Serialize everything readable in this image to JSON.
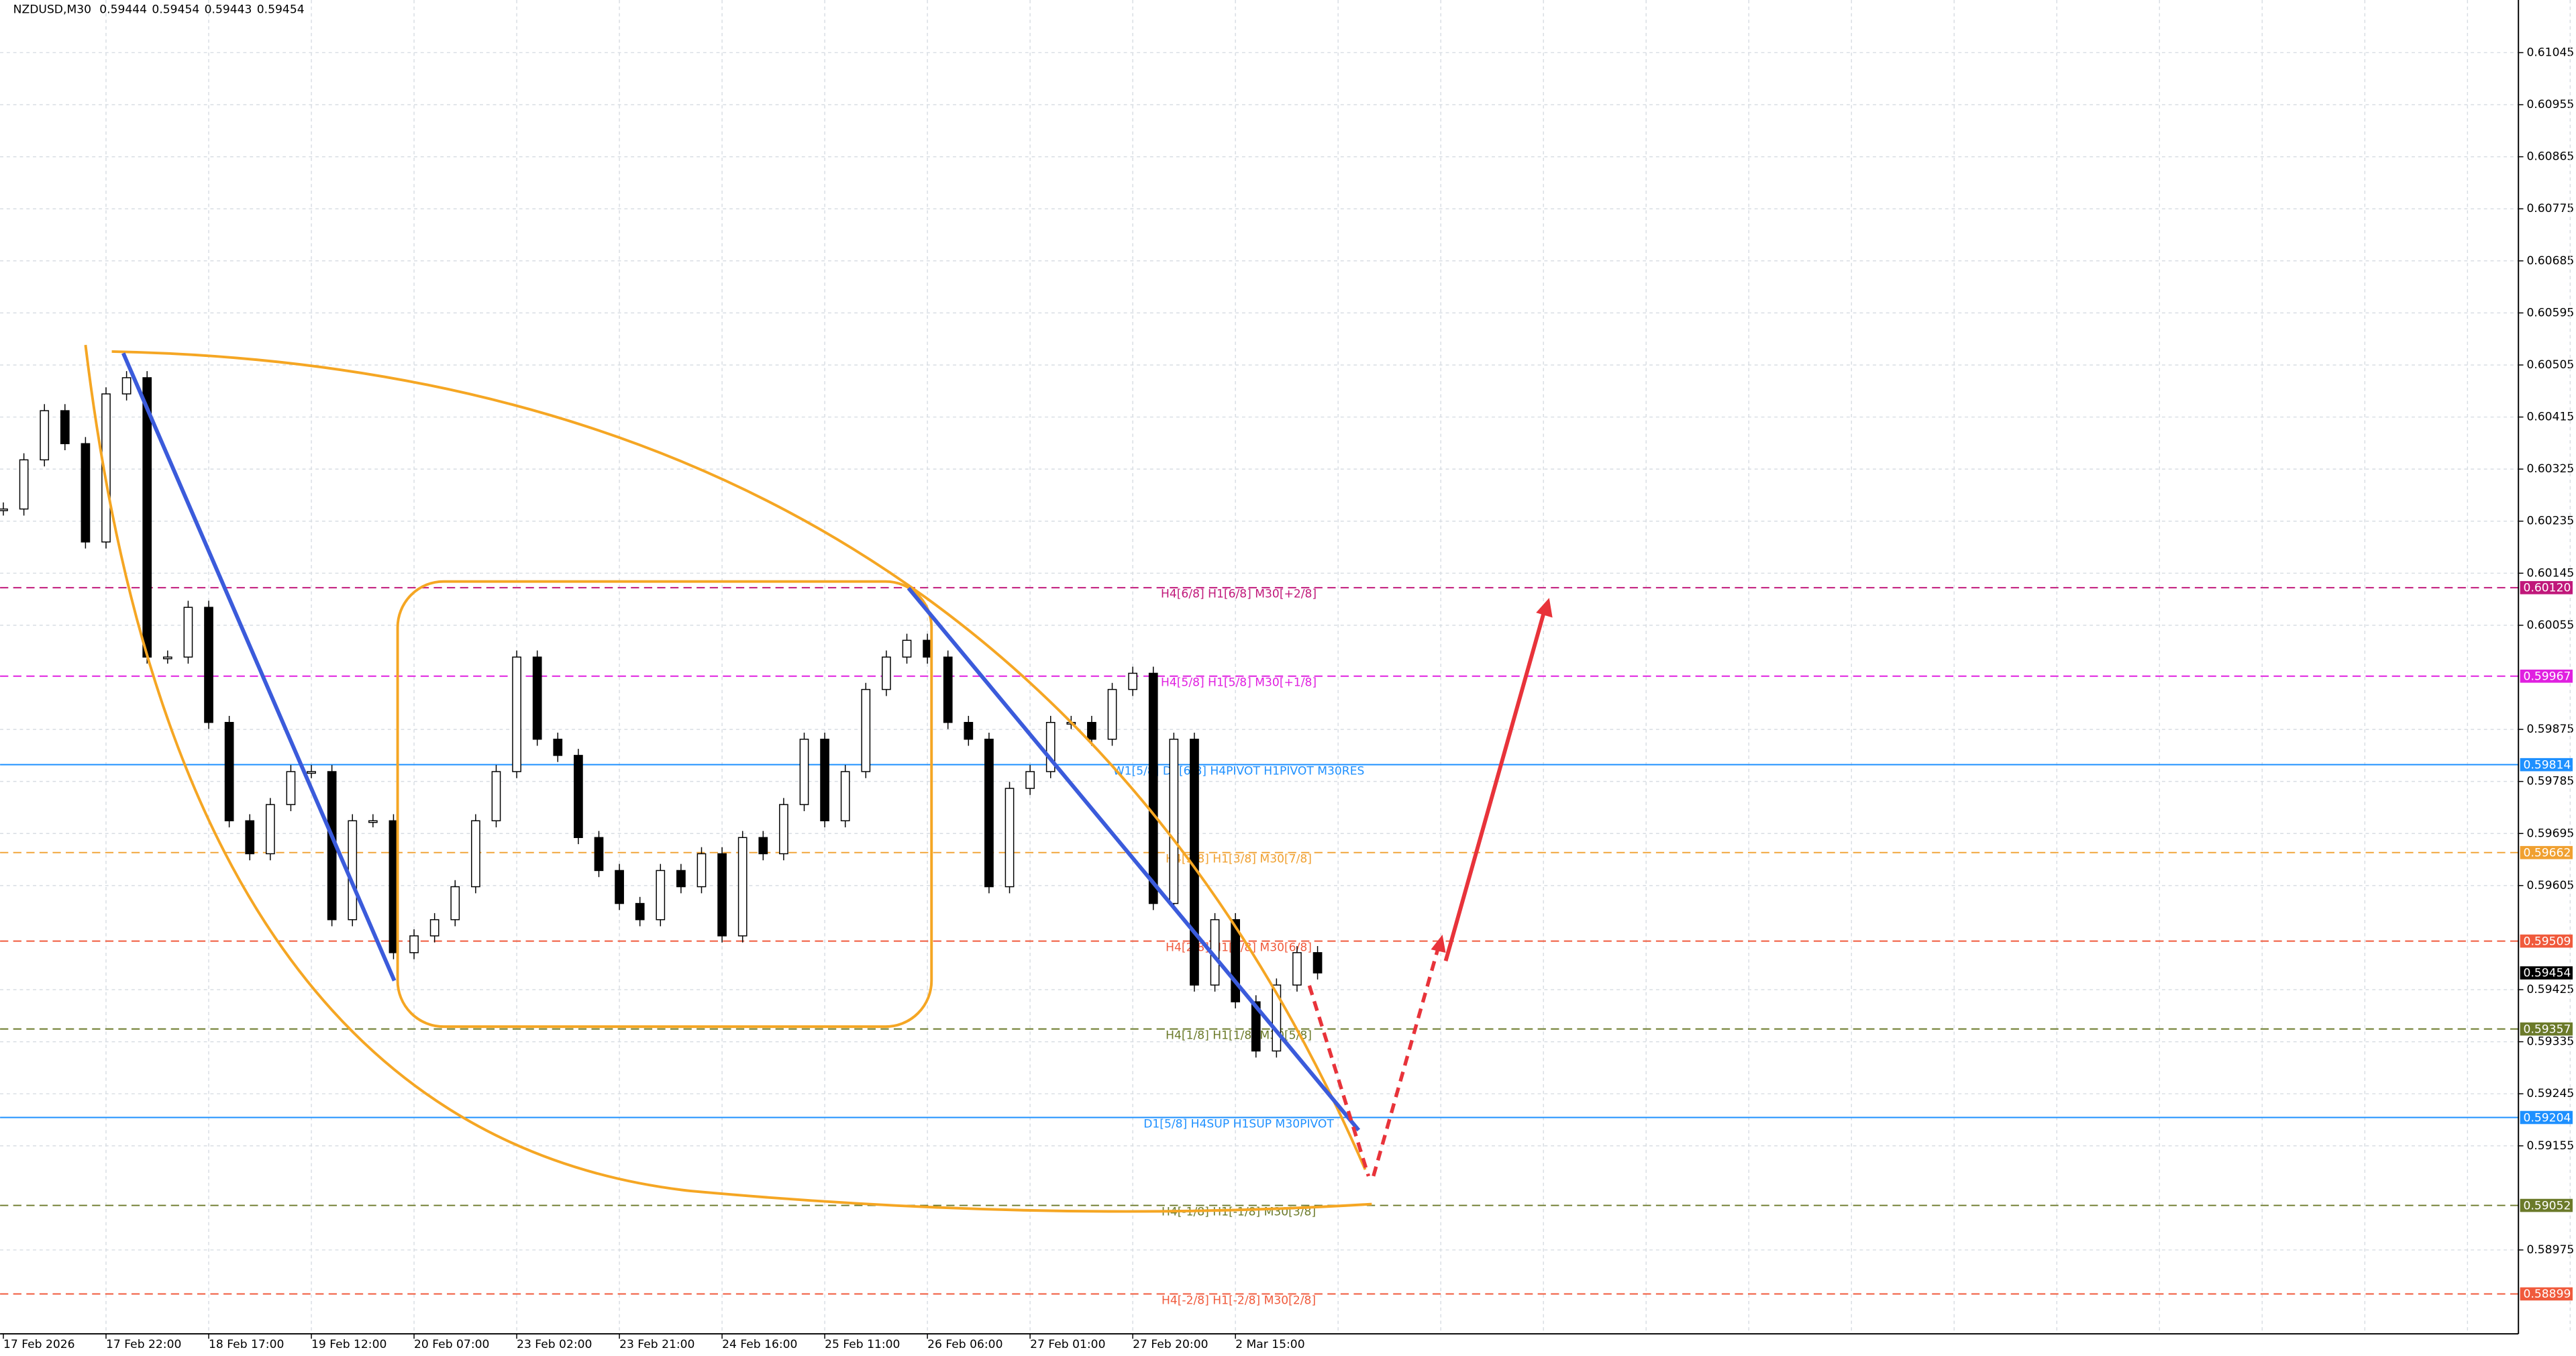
{
  "chart_data": {
    "type": "candlestick",
    "symbol": "NZDUSD,M30",
    "ohlc": [
      0.59444,
      0.59454,
      0.59443,
      0.59454
    ],
    "ylim": [
      0.5883,
      0.61136
    ],
    "yticks": [
      0.61045,
      0.60955,
      0.60865,
      0.60775,
      0.60685,
      0.60595,
      0.60505,
      0.60415,
      0.60325,
      0.60235,
      0.60145,
      0.60055,
      0.59875,
      0.59785,
      0.59695,
      0.59605,
      0.59425,
      0.59335,
      0.59245,
      0.59155,
      0.58975
    ],
    "x_labels": [
      "17 Feb 2026",
      "17 Feb 22:00",
      "18 Feb 17:00",
      "19 Feb 12:00",
      "20 Feb 07:00",
      "23 Feb 02:00",
      "23 Feb 21:00",
      "24 Feb 16:00",
      "25 Feb 11:00",
      "26 Feb 06:00",
      "27 Feb 01:00",
      "27 Feb 20:00",
      "2 Mar 15:00"
    ],
    "grid": true,
    "closes": [
      0.60256,
      0.60341,
      0.60426,
      0.60369,
      0.60199,
      0.60455,
      0.60483,
      0.6,
      0.6,
      0.60086,
      0.59887,
      0.59717,
      0.5966,
      0.59745,
      0.59802,
      0.59802,
      0.59546,
      0.59717,
      0.59717,
      0.59489,
      0.59518,
      0.59546,
      0.59603,
      0.59717,
      0.59802,
      0.6,
      0.59858,
      0.5983,
      0.59688,
      0.59631,
      0.59574,
      0.59546,
      0.59631,
      0.59603,
      0.5966,
      0.59518,
      0.59688,
      0.5966,
      0.59745,
      0.59858,
      0.59717,
      0.59802,
      0.59944,
      0.6,
      0.60029,
      0.6,
      0.59887,
      0.59858,
      0.59603,
      0.59773,
      0.59802,
      0.59887,
      0.59887,
      0.59858,
      0.59944,
      0.59972,
      0.59574,
      0.59858,
      0.59433,
      0.59546,
      0.59404,
      0.59319,
      0.59433,
      0.59489,
      0.59454
    ],
    "current": {
      "value": 0.59454,
      "label": "0.59454",
      "color": "#000000"
    },
    "levels": [
      {
        "price": {
          "value": 0.6012,
          "label": "0.60120"
        },
        "label": "H4[6/8] H1[6/8] M30[+2/8]",
        "color": "#c0187a",
        "style": "dashed"
      },
      {
        "price": 0.59967,
        "label": "H4[5/8] H1[5/8] M30[+1/8]",
        "color": "#e020e0",
        "style": "dashed"
      },
      {
        "price": 0.59814,
        "label": "W1[5/8] D1[6/8] H4PIVOT H1PIVOT M30RES",
        "color": "#1e90ff",
        "style": "solid"
      },
      {
        "price": 0.59662,
        "label": "H4[3/8] H1[3/8] M30[7/8]",
        "color": "#f0a030",
        "style": "dashed"
      },
      {
        "price": 0.59509,
        "label": "H4[2/8] H1[2/8] M30[6/8]",
        "color": "#f05a3c",
        "style": "dashed"
      },
      {
        "price": 0.59357,
        "label": "H4[1/8] H1[1/8] M30[5/8]",
        "color": "#6b7a2a",
        "style": "dashed"
      },
      {
        "price": 0.59204,
        "label": "D1[5/8] H4SUP H1SUP M30PIVOT",
        "color": "#1e90ff",
        "style": "solid"
      },
      {
        "price": 0.59052,
        "label": "H4[-1/8] H1[-1/8] M30[3/8]",
        "color": "#6b7a2a",
        "style": "dashed"
      },
      {
        "price": 0.58899,
        "label": "H4[-2/8] H1[-2/8] M30[2/8]",
        "color": "#f05a3c",
        "style": "dashed"
      }
    ]
  }
}
